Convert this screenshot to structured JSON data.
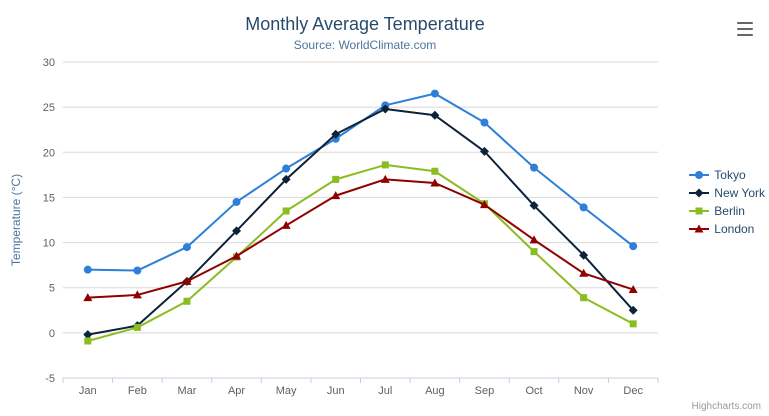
{
  "title": "Monthly Average Temperature",
  "subtitle": "Source: WorldClimate.com",
  "credits": "Highcharts.com",
  "chart_data": {
    "type": "line",
    "categories": [
      "Jan",
      "Feb",
      "Mar",
      "Apr",
      "May",
      "Jun",
      "Jul",
      "Aug",
      "Sep",
      "Oct",
      "Nov",
      "Dec"
    ],
    "xlabel": "",
    "ylabel": "Temperature (°C)",
    "ylim": [
      -5,
      30
    ],
    "ytick_interval": 5,
    "grid": true,
    "legend_position": "right",
    "series": [
      {
        "name": "Tokyo",
        "color": "#2f7ed8",
        "marker": "circle",
        "values": [
          7.0,
          6.9,
          9.5,
          14.5,
          18.2,
          21.5,
          25.2,
          26.5,
          23.3,
          18.3,
          13.9,
          9.6
        ]
      },
      {
        "name": "New York",
        "color": "#0d233a",
        "marker": "diamond",
        "values": [
          -0.2,
          0.8,
          5.7,
          11.3,
          17.0,
          22.0,
          24.8,
          24.1,
          20.1,
          14.1,
          8.6,
          2.5
        ]
      },
      {
        "name": "Berlin",
        "color": "#8bbc21",
        "marker": "square",
        "values": [
          -0.9,
          0.6,
          3.5,
          8.4,
          13.5,
          17.0,
          18.6,
          17.9,
          14.3,
          9.0,
          3.9,
          1.0
        ]
      },
      {
        "name": "London",
        "color": "#910000",
        "marker": "triangle",
        "values": [
          3.9,
          4.2,
          5.7,
          8.5,
          11.9,
          15.2,
          17.0,
          16.6,
          14.2,
          10.3,
          6.6,
          4.8
        ]
      }
    ]
  }
}
